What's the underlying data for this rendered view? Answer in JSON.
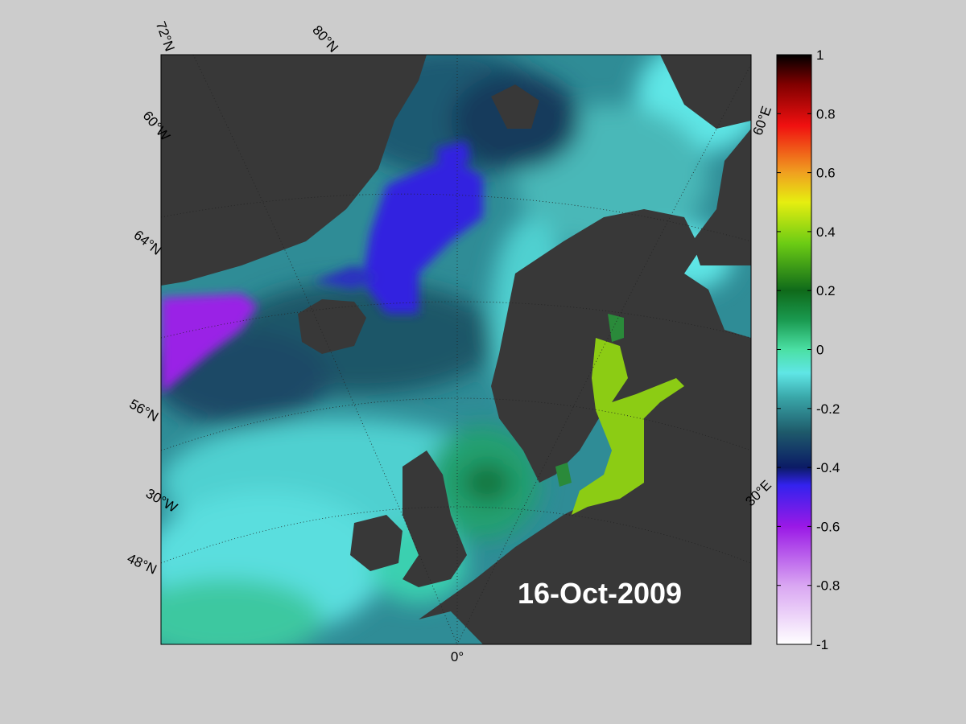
{
  "map": {
    "date": "16-Oct-2009",
    "grid_labels": {
      "lat": [
        "72°N",
        "80°N",
        "64°N",
        "56°N",
        "48°N"
      ],
      "lon": [
        "60°W",
        "30°W",
        "0°",
        "30°E",
        "60°E"
      ]
    }
  },
  "colorbar": {
    "range": [
      -1,
      1
    ],
    "ticks": [
      -1,
      -0.8,
      -0.6,
      -0.4,
      -0.2,
      0,
      0.2,
      0.4,
      0.6,
      0.8,
      1
    ]
  }
}
